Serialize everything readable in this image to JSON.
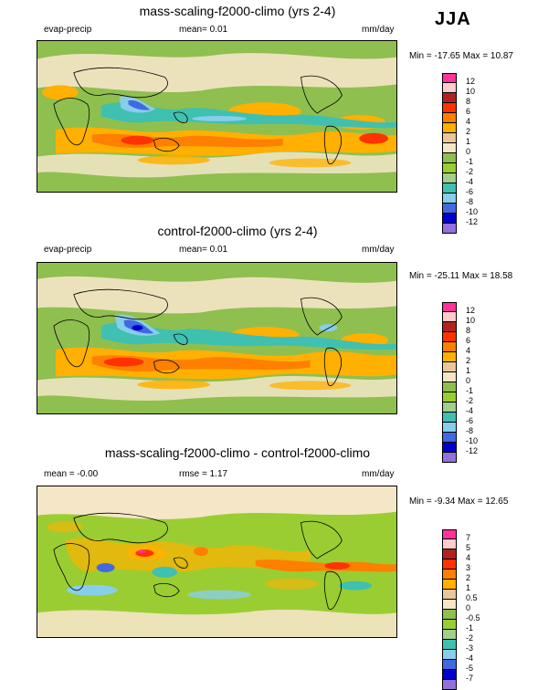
{
  "season": "JJA",
  "panels": [
    {
      "title": "mass-scaling-f2000-climo (yrs 2-4)",
      "left_label": "evap-precip",
      "mid_label": "mean=  0.01",
      "units": "mm/day",
      "minmax": "Min = -17.65 Max =  10.87",
      "legend": {
        "colors": [
          "#ff3399",
          "#ffcccc",
          "#b22222",
          "#ff3300",
          "#ff7f00",
          "#ffb000",
          "#e8c89a",
          "#f5e6c8",
          "#8fbf4f",
          "#9acd32",
          "#a0d08a",
          "#40c0b0",
          "#87ceeb",
          "#4169e1",
          "#0000cd",
          "#9370db"
        ],
        "labels": [
          "12",
          "10",
          "8",
          "6",
          "4",
          "2",
          "1",
          "0",
          "-1",
          "-2",
          "-4",
          "-6",
          "-8",
          "-10",
          "-12"
        ]
      }
    },
    {
      "title": "control-f2000-climo (yrs 2-4)",
      "left_label": "evap-precip",
      "mid_label": "mean=  0.01",
      "units": "mm/day",
      "minmax": "Min = -25.11 Max =  18.58",
      "legend": {
        "colors": [
          "#ff3399",
          "#ffcccc",
          "#b22222",
          "#ff3300",
          "#ff7f00",
          "#ffb000",
          "#e8c89a",
          "#f5e6c8",
          "#8fbf4f",
          "#9acd32",
          "#a0d08a",
          "#40c0b0",
          "#87ceeb",
          "#4169e1",
          "#0000cd",
          "#9370db"
        ],
        "labels": [
          "12",
          "10",
          "8",
          "6",
          "4",
          "2",
          "1",
          "0",
          "-1",
          "-2",
          "-4",
          "-6",
          "-8",
          "-10",
          "-12"
        ]
      }
    },
    {
      "title": "mass-scaling-f2000-climo - control-f2000-climo",
      "left_label": "mean =  -0.00",
      "mid_label": "rmse =   1.17",
      "units": "mm/day",
      "minmax": "Min =  -9.34 Max =  12.65",
      "legend": {
        "colors": [
          "#ff3399",
          "#ffcccc",
          "#b22222",
          "#ff3300",
          "#ff7f00",
          "#ffb000",
          "#e8c89a",
          "#f5e6c8",
          "#8fbf4f",
          "#9acd32",
          "#a0d08a",
          "#40c0b0",
          "#87ceeb",
          "#4169e1",
          "#0000cd",
          "#9370db"
        ],
        "labels": [
          "7",
          "5",
          "4",
          "3",
          "2",
          "1",
          "0.5",
          "0",
          "-0.5",
          "-1",
          "-2",
          "-3",
          "-4",
          "-5",
          "-7"
        ]
      }
    }
  ]
}
